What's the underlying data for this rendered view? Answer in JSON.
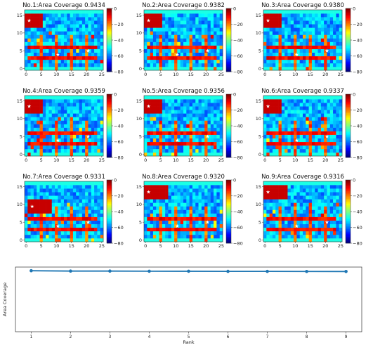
{
  "panels": [
    {
      "title": "No.1:Area Coverage 0.9434"
    },
    {
      "title": "No.2:Area Coverage 0.9382"
    },
    {
      "title": "No.3:Area Coverage 0.9380"
    },
    {
      "title": "No.4:Area Coverage 0.9359"
    },
    {
      "title": "No.5:Area Coverage 0.9356"
    },
    {
      "title": "No.6:Area Coverage 0.9337"
    },
    {
      "title": "No.7:Area Coverage 0.9331"
    },
    {
      "title": "No.8:Area Coverage 0.9320"
    },
    {
      "title": "No.9:Area Coverage 0.9316"
    }
  ],
  "heatmap_axes": {
    "x_ticks": [
      "0",
      "5",
      "10",
      "15",
      "20",
      "25"
    ],
    "y_ticks": [
      "0",
      "5",
      "10",
      "15"
    ],
    "colorbar_ticks": [
      "0",
      "−20",
      "−40",
      "−60",
      "−80"
    ]
  },
  "chart_data": {
    "type": "line",
    "xlabel": "Rank",
    "ylabel": "Area Coverage",
    "x": [
      1,
      2,
      3,
      4,
      5,
      6,
      7,
      8,
      9
    ],
    "values": [
      0.9434,
      0.9382,
      0.938,
      0.9359,
      0.9356,
      0.9337,
      0.9331,
      0.932,
      0.9316
    ],
    "x_ticks": [
      "1",
      "2",
      "3",
      "4",
      "5",
      "6",
      "7",
      "8",
      "9"
    ],
    "xlim": [
      0.6,
      9.4
    ],
    "ylim": [
      0,
      1.0
    ],
    "grid": false,
    "color": "#1f77b4"
  }
}
